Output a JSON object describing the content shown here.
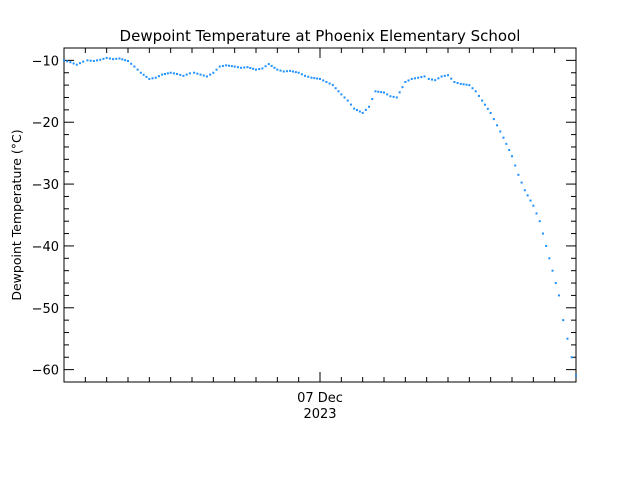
{
  "chart_data": {
    "type": "scatter",
    "title": "Dewpoint Temperature at Phoenix Elementary School",
    "ylabel": "Dewpoint Temperature (°C)",
    "xlabel": "",
    "x_tick_labels": [
      {
        "date": "07 Dec",
        "year": "2023",
        "hour": 12
      }
    ],
    "xlim_hours": [
      0,
      24
    ],
    "ylim": [
      -62,
      -8
    ],
    "y_major_ticks": [
      -10,
      -20,
      -30,
      -40,
      -50,
      -60
    ],
    "y_tick_labels": [
      "−10",
      "−20",
      "−30",
      "−40",
      "−50",
      "−60"
    ],
    "y_minor_step": 2,
    "grid": false,
    "legend": "none",
    "marker_color": "#1e90ff",
    "series": [
      {
        "x_hours": [
          0.0,
          0.3,
          0.6,
          0.9,
          1.1,
          1.4,
          1.7,
          2.0,
          2.3,
          2.6,
          3.0,
          3.3,
          3.6,
          4.0,
          4.3,
          4.6,
          5.0,
          5.3,
          5.6,
          5.9,
          6.1,
          6.4,
          6.7,
          7.0,
          7.3,
          7.6,
          8.0,
          8.3,
          8.6,
          9.0,
          9.3,
          9.6,
          10.0,
          10.3,
          10.6,
          11.0,
          11.3,
          11.6,
          12.0,
          12.3,
          12.6,
          13.0,
          13.3,
          13.6,
          14.0,
          14.3,
          14.6,
          15.0,
          15.3,
          15.6,
          16.0,
          16.3,
          16.6,
          16.9,
          17.1,
          17.4,
          17.7,
          18.0,
          18.3,
          18.6,
          19.0,
          19.3,
          19.6,
          20.0,
          20.3,
          20.6,
          21.0,
          21.3,
          21.6,
          22.0,
          22.3,
          22.6,
          22.9,
          23.2,
          23.4,
          23.6,
          23.8,
          24.0
        ],
        "y": [
          -10.0,
          -10.3,
          -10.7,
          -10.2,
          -10.0,
          -10.1,
          -9.9,
          -9.6,
          -9.8,
          -9.7,
          -10.1,
          -11.0,
          -12.0,
          -13.0,
          -12.8,
          -12.3,
          -12.0,
          -12.2,
          -12.5,
          -12.1,
          -12.0,
          -12.3,
          -12.6,
          -12.0,
          -11.0,
          -10.8,
          -11.0,
          -11.2,
          -11.1,
          -11.5,
          -11.3,
          -10.6,
          -11.5,
          -11.8,
          -11.7,
          -12.0,
          -12.5,
          -12.8,
          -13.0,
          -13.5,
          -14.0,
          -15.5,
          -16.5,
          -17.8,
          -18.5,
          -17.5,
          -15.0,
          -15.2,
          -15.8,
          -16.0,
          -13.5,
          -13.0,
          -12.8,
          -12.6,
          -13.0,
          -13.2,
          -12.6,
          -12.4,
          -13.5,
          -13.8,
          -14.0,
          -15.0,
          -16.5,
          -18.5,
          -20.5,
          -22.5,
          -25.5,
          -28.5,
          -31.0,
          -33.5,
          -36.0,
          -40.0,
          -44.0,
          -48.0,
          -52.0,
          -55.0,
          -58.0,
          -61.0
        ]
      }
    ]
  }
}
